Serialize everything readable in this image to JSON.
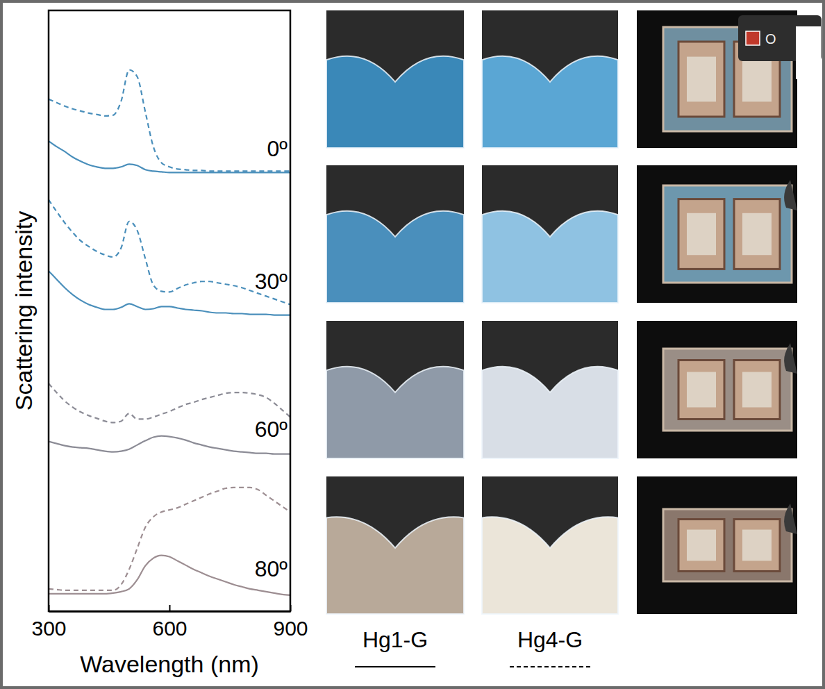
{
  "chart_data": {
    "type": "line",
    "xlabel": "Wavelength (nm)",
    "ylabel": "Scattering intensity",
    "xlim": [
      300,
      900
    ],
    "xticks": [
      300,
      600,
      900
    ],
    "tick_labels": "x",
    "legend": "bottom",
    "x": [
      300,
      320,
      340,
      360,
      380,
      400,
      420,
      440,
      460,
      480,
      500,
      520,
      540,
      560,
      580,
      600,
      620,
      640,
      660,
      680,
      700,
      720,
      740,
      760,
      780,
      800,
      820,
      840,
      860,
      880,
      900
    ],
    "series": [
      {
        "name": "Hg1-G",
        "line_style": "solid"
      },
      {
        "name": "Hg4-G",
        "line_style": "dashed"
      }
    ],
    "panels": [
      {
        "annotation": "0º",
        "color": "#4a8fbb",
        "ylim": [
          0,
          2.4
        ],
        "values": [
          [
            0.53,
            0.45,
            0.38,
            0.3,
            0.24,
            0.19,
            0.16,
            0.14,
            0.14,
            0.16,
            0.2,
            0.18,
            0.12,
            0.1,
            0.09,
            0.08,
            0.08,
            0.08,
            0.08,
            0.08,
            0.08,
            0.08,
            0.08,
            0.08,
            0.08,
            0.08,
            0.08,
            0.08,
            0.08,
            0.08,
            0.08
          ],
          [
            1.13,
            1.08,
            1.03,
            0.99,
            0.96,
            0.93,
            0.91,
            0.89,
            0.9,
            1.1,
            1.55,
            1.45,
            0.95,
            0.45,
            0.22,
            0.16,
            0.13,
            0.12,
            0.11,
            0.11,
            0.1,
            0.1,
            0.1,
            0.1,
            0.1,
            0.1,
            0.1,
            0.1,
            0.1,
            0.1,
            0.1
          ]
        ]
      },
      {
        "annotation": "30º",
        "color": "#4a8fbb",
        "ylim": [
          0,
          2.0
        ],
        "values": [
          [
            0.67,
            0.55,
            0.43,
            0.33,
            0.25,
            0.19,
            0.15,
            0.12,
            0.12,
            0.15,
            0.2,
            0.16,
            0.12,
            0.13,
            0.16,
            0.16,
            0.14,
            0.12,
            0.11,
            0.1,
            0.08,
            0.07,
            0.07,
            0.06,
            0.06,
            0.05,
            0.05,
            0.05,
            0.04,
            0.04,
            0.04
          ],
          [
            1.69,
            1.52,
            1.36,
            1.22,
            1.1,
            1.02,
            0.95,
            0.9,
            0.87,
            1.0,
            1.38,
            1.25,
            0.85,
            0.47,
            0.38,
            0.37,
            0.42,
            0.47,
            0.5,
            0.52,
            0.52,
            0.5,
            0.48,
            0.46,
            0.43,
            0.39,
            0.35,
            0.31,
            0.27,
            0.23,
            0.19
          ]
        ]
      },
      {
        "annotation": "60º",
        "color": "#8c8c96",
        "ylim": [
          0,
          2.0
        ],
        "values": [
          [
            0.23,
            0.2,
            0.17,
            0.15,
            0.14,
            0.13,
            0.11,
            0.09,
            0.08,
            0.09,
            0.12,
            0.18,
            0.24,
            0.29,
            0.31,
            0.3,
            0.28,
            0.25,
            0.21,
            0.18,
            0.15,
            0.13,
            0.11,
            0.09,
            0.08,
            0.07,
            0.06,
            0.06,
            0.05,
            0.05,
            0.05
          ],
          [
            1.06,
            0.93,
            0.81,
            0.72,
            0.65,
            0.6,
            0.56,
            0.52,
            0.5,
            0.52,
            0.63,
            0.55,
            0.55,
            0.58,
            0.62,
            0.66,
            0.71,
            0.76,
            0.79,
            0.83,
            0.86,
            0.89,
            0.92,
            0.93,
            0.93,
            0.92,
            0.9,
            0.86,
            0.78,
            0.68,
            0.58
          ]
        ]
      },
      {
        "annotation": "80º",
        "color": "#9d8e92",
        "ylim": [
          0,
          2.2
        ],
        "values": [
          [
            0.25,
            0.25,
            0.25,
            0.25,
            0.25,
            0.25,
            0.25,
            0.25,
            0.26,
            0.28,
            0.32,
            0.45,
            0.65,
            0.76,
            0.8,
            0.78,
            0.72,
            0.66,
            0.6,
            0.55,
            0.5,
            0.46,
            0.42,
            0.38,
            0.35,
            0.32,
            0.3,
            0.28,
            0.26,
            0.24,
            0.23
          ],
          [
            0.32,
            0.31,
            0.3,
            0.3,
            0.3,
            0.3,
            0.3,
            0.3,
            0.3,
            0.38,
            0.6,
            0.9,
            1.2,
            1.35,
            1.42,
            1.45,
            1.48,
            1.53,
            1.58,
            1.63,
            1.68,
            1.72,
            1.76,
            1.77,
            1.77,
            1.77,
            1.74,
            1.66,
            1.58,
            1.5,
            1.42
          ]
        ]
      }
    ]
  },
  "overlay_text": "O"
}
